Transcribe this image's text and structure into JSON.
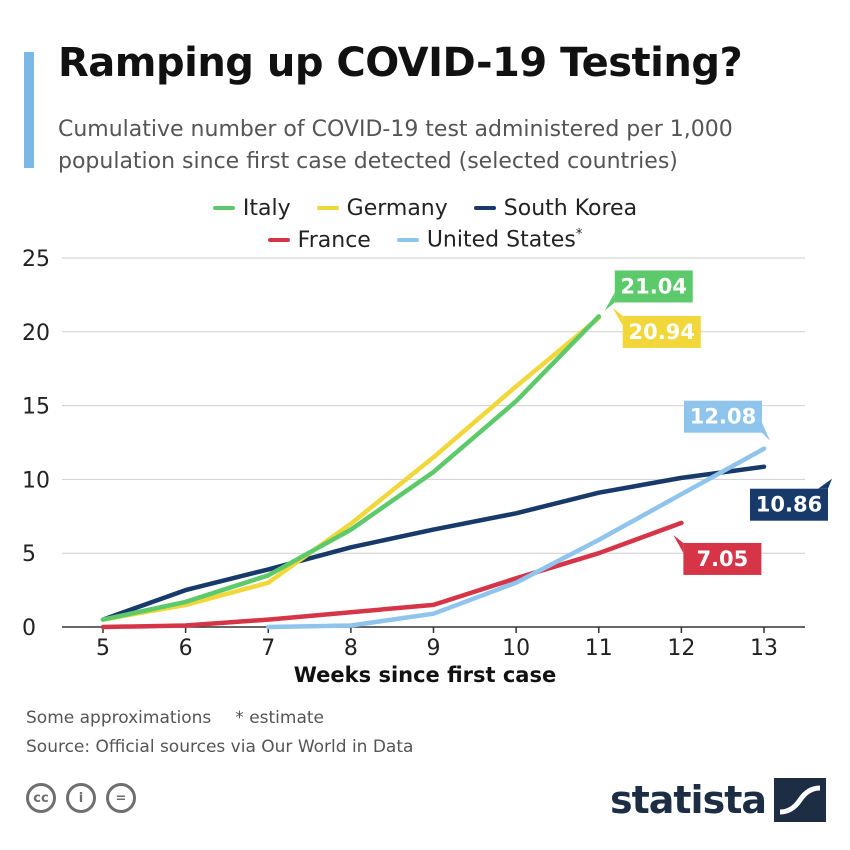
{
  "title": "Ramping up COVID-19 Testing?",
  "subtitle": "Cumulative number of COVID-19 test administered per 1,000 population since first case detected (selected countries)",
  "legend": {
    "row1": [
      {
        "label": "Italy",
        "color": "#5cc96b"
      },
      {
        "label": "Germany",
        "color": "#f2d73a"
      },
      {
        "label": "South Korea",
        "color": "#173a6b"
      }
    ],
    "row2": [
      {
        "label": "France",
        "color": "#d63447"
      },
      {
        "label": "United States",
        "color": "#8fc4ec",
        "suffix": "*"
      }
    ]
  },
  "chart_data": {
    "type": "line",
    "title": "Ramping up COVID-19 Testing?",
    "xlabel": "Weeks since first case",
    "ylabel": "",
    "xlim": [
      5,
      13
    ],
    "ylim": [
      0,
      25
    ],
    "xticks": [
      5,
      6,
      7,
      8,
      9,
      10,
      11,
      12,
      13
    ],
    "yticks": [
      0,
      5,
      10,
      15,
      20,
      25
    ],
    "grid": true,
    "series": [
      {
        "name": "South Korea",
        "color": "#173a6b",
        "x": [
          5,
          6,
          7,
          8,
          9,
          10,
          11,
          12,
          13
        ],
        "y": [
          0.5,
          2.5,
          3.9,
          5.4,
          6.6,
          7.7,
          9.1,
          10.1,
          10.86
        ],
        "end_label": "10.86"
      },
      {
        "name": "Germany",
        "color": "#f2d73a",
        "x": [
          5,
          6,
          7,
          8,
          9,
          10,
          11
        ],
        "y": [
          0.5,
          1.5,
          3.0,
          7.0,
          11.5,
          16.3,
          20.94
        ],
        "end_label": "20.94"
      },
      {
        "name": "Italy",
        "color": "#5cc96b",
        "x": [
          5,
          6,
          7,
          8,
          9,
          10,
          11
        ],
        "y": [
          0.5,
          1.7,
          3.5,
          6.6,
          10.5,
          15.3,
          21.04
        ],
        "end_label": "21.04"
      },
      {
        "name": "France",
        "color": "#d63447",
        "x": [
          5,
          6,
          7,
          8,
          9,
          10,
          11,
          12
        ],
        "y": [
          0.0,
          0.1,
          0.5,
          1.0,
          1.5,
          3.3,
          5.0,
          7.05
        ],
        "end_label": "7.05"
      },
      {
        "name": "United States",
        "color": "#8fc4ec",
        "x": [
          7,
          8,
          9,
          10,
          11,
          12,
          13
        ],
        "y": [
          0.0,
          0.1,
          0.9,
          3.0,
          5.9,
          9.0,
          12.08
        ],
        "end_label": "12.08"
      }
    ]
  },
  "notes": {
    "approx": "Some approximations",
    "estimate": "* estimate",
    "source": "Source: Official sources via Our World in Data"
  },
  "license_icons": [
    {
      "name": "cc-icon",
      "glyph": "cc"
    },
    {
      "name": "by-icon",
      "glyph": "i"
    },
    {
      "name": "nd-icon",
      "glyph": "="
    }
  ],
  "brand": "statista"
}
